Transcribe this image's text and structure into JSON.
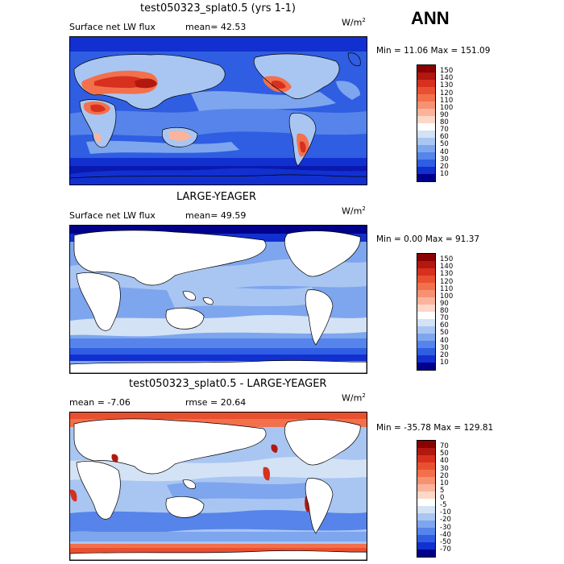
{
  "season": "ANN",
  "panels": [
    {
      "title": "test050323_splat0.5 (yrs 1-1)",
      "left_label": "Surface net LW flux",
      "right_label": "mean=  42.53",
      "units": "W/m",
      "units_exp": "2",
      "min_max": "Min =  11.06 Max = 151.09",
      "colorbar": {
        "labels": [
          "150",
          "140",
          "130",
          "120",
          "110",
          "100",
          "90",
          "80",
          "70",
          "60",
          "50",
          "40",
          "30",
          "20",
          "10"
        ],
        "colors": [
          "#8b0000",
          "#b2180f",
          "#d7301f",
          "#e9502f",
          "#f3704c",
          "#f79174",
          "#fbb39c",
          "#fdd7c7",
          "#ffffff",
          "#d3e2f5",
          "#a9c6f2",
          "#7ea6ee",
          "#5684ea",
          "#2f5ee3",
          "#1230d0",
          "#00008b"
        ]
      },
      "land_mask": false
    },
    {
      "title": "LARGE-YEAGER",
      "left_label": "Surface net LW flux",
      "right_label": "mean=  49.59",
      "units": "W/m",
      "units_exp": "2",
      "min_max": "Min =   0.00 Max =  91.37",
      "colorbar": {
        "labels": [
          "150",
          "140",
          "130",
          "120",
          "110",
          "100",
          "90",
          "80",
          "70",
          "60",
          "50",
          "40",
          "30",
          "20",
          "10"
        ],
        "colors": [
          "#8b0000",
          "#b2180f",
          "#d7301f",
          "#e9502f",
          "#f3704c",
          "#f79174",
          "#fbb39c",
          "#fdd7c7",
          "#ffffff",
          "#d3e2f5",
          "#a9c6f2",
          "#7ea6ee",
          "#5684ea",
          "#2f5ee3",
          "#1230d0",
          "#00008b"
        ]
      },
      "land_mask": true
    },
    {
      "title": "test050323_splat0.5 - LARGE-YEAGER",
      "left_label": "mean =  -7.06",
      "right_label": "rmse =  20.64",
      "units": "W/m",
      "units_exp": "2",
      "min_max": "Min = -35.78 Max = 129.81",
      "colorbar": {
        "labels": [
          "70",
          "50",
          "40",
          "30",
          "20",
          "10",
          "5",
          "0",
          "-5",
          "-10",
          "-20",
          "-30",
          "-40",
          "-50",
          "-70"
        ],
        "colors": [
          "#8b0000",
          "#b2180f",
          "#d7301f",
          "#e9502f",
          "#f3704c",
          "#f79174",
          "#fbb39c",
          "#fdd7c7",
          "#ffffff",
          "#d3e2f5",
          "#a9c6f2",
          "#7ea6ee",
          "#5684ea",
          "#2f5ee3",
          "#1230d0",
          "#00008b"
        ]
      },
      "land_mask": true
    }
  ]
}
